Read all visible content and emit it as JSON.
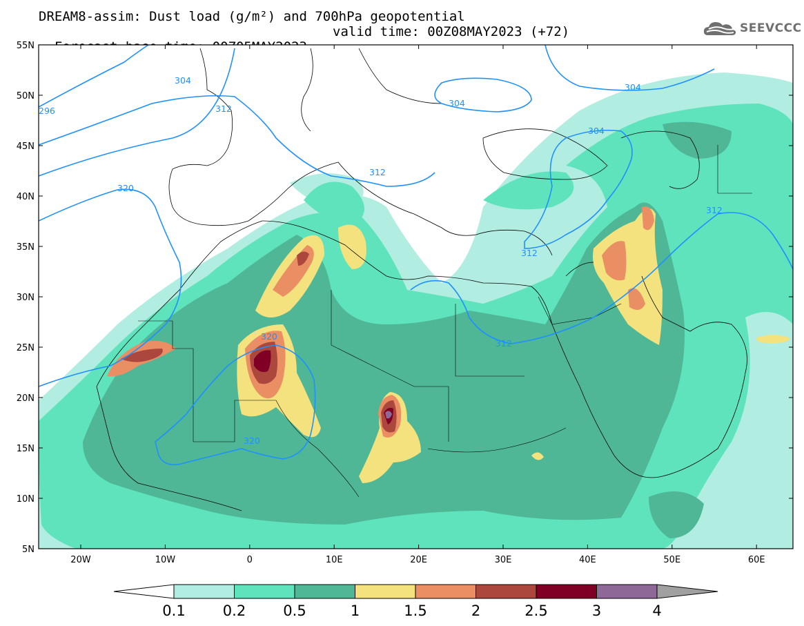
{
  "header": {
    "title_line1": "DREAM8-assim: Dust load (g/m²) and 700hPa geopotential",
    "base_time": "Forecast base time: 00Z05MAY2023",
    "valid_time": "valid time: 00Z08MAY2023 (+72)",
    "logo_text": "SEEVCCC",
    "logo_icon": "cloud-icon"
  },
  "axes": {
    "lat_labels": [
      "55N",
      "50N",
      "45N",
      "40N",
      "35N",
      "30N",
      "25N",
      "20N",
      "15N",
      "10N",
      "5N"
    ],
    "lon_labels": [
      "20W",
      "10W",
      "0",
      "10E",
      "20E",
      "30E",
      "40E",
      "50E",
      "60E"
    ]
  },
  "contours": {
    "labels": [
      "304",
      "296",
      "312",
      "304",
      "304",
      "312",
      "320",
      "304",
      "312",
      "312",
      "320",
      "320",
      "312"
    ],
    "color": "#1e90ff"
  },
  "colorbar": {
    "labels": [
      "0.1",
      "0.2",
      "0.5",
      "1",
      "1.5",
      "2",
      "2.5",
      "3",
      "4"
    ],
    "colors": [
      "#ffffff",
      "#b2ede2",
      "#5fe3bd",
      "#4fb796",
      "#f4e27e",
      "#ea8e64",
      "#ac473e",
      "#800025",
      "#8e6998",
      "#a0a0a0"
    ]
  }
}
